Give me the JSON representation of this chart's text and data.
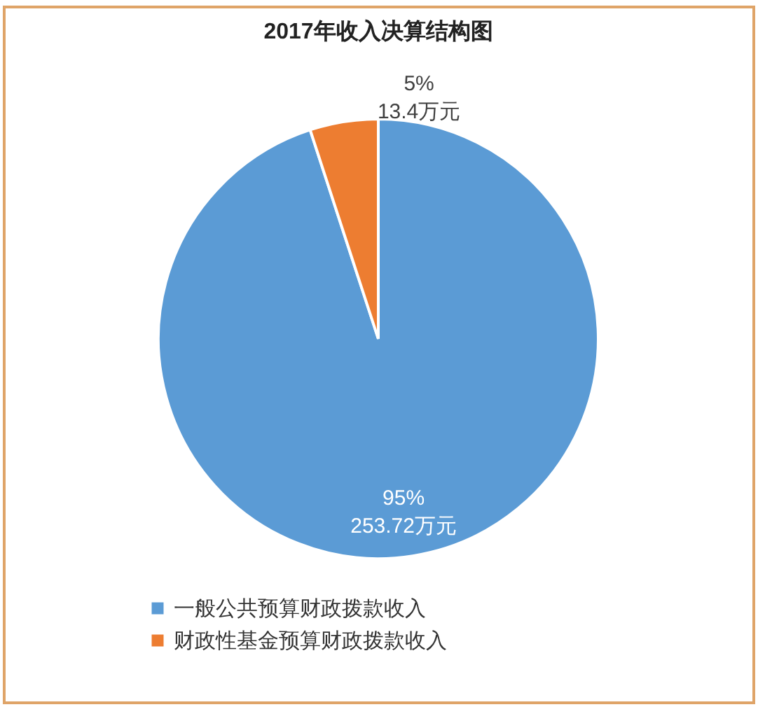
{
  "chart_data": {
    "type": "pie",
    "title": "2017年收入决算结构图",
    "categories": [
      "一般公共预算财政拨款收入",
      "财政性基金预算财政拨款收入"
    ],
    "values": [
      253.72,
      13.4
    ],
    "colors": [
      "#5b9bd5",
      "#ed7d31"
    ],
    "value_labels": [
      "95%\n253.72万元",
      "5%\n13.4万元"
    ],
    "legend": "bottom left"
  }
}
